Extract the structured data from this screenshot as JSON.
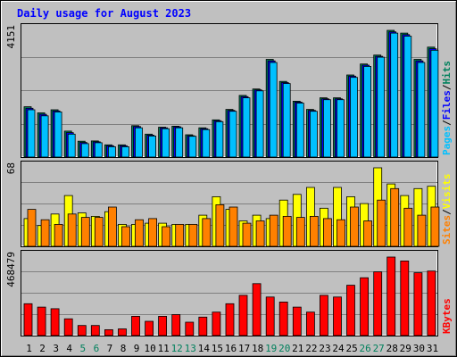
{
  "chart_data": {
    "type": "bar",
    "title": "Daily usage for August 2023",
    "categories": [
      "1",
      "2",
      "3",
      "4",
      "5",
      "6",
      "7",
      "8",
      "9",
      "10",
      "11",
      "12",
      "13",
      "14",
      "15",
      "16",
      "17",
      "18",
      "19",
      "20",
      "21",
      "22",
      "23",
      "24",
      "25",
      "26",
      "27",
      "28",
      "29",
      "30",
      "31"
    ],
    "weekend_days": [
      "5",
      "6",
      "12",
      "13",
      "19",
      "20",
      "26",
      "27"
    ],
    "panels": [
      {
        "id": "hits",
        "max_label": "4151",
        "ylim": [
          0,
          4151
        ],
        "right_labels": [
          "Hits",
          "Files",
          "Pages"
        ],
        "series": [
          {
            "name": "Hits",
            "color": "#00805c",
            "values": [
              1650,
              1450,
              1550,
              850,
              520,
              530,
              400,
              400,
              1030,
              750,
              980,
              1010,
              730,
              960,
              1220,
              1560,
              2020,
              2230,
              3200,
              2480,
              1830,
              1560,
              1940,
              1940,
              2690,
              3050,
              3340,
              4151,
              4060,
              3200,
              3600
            ]
          },
          {
            "name": "Files",
            "color": "#0000ff",
            "values": [
              1600,
              1400,
              1510,
              800,
              480,
              500,
              370,
              370,
              1000,
              720,
              960,
              990,
              700,
              930,
              1190,
              1530,
              1980,
              2200,
              3150,
              2440,
              1800,
              1530,
              1910,
              1910,
              2650,
              3010,
              3300,
              4100,
              4010,
              3150,
              3550
            ]
          },
          {
            "name": "Pages",
            "color": "#00c0ff",
            "values": [
              1550,
              1350,
              1480,
              750,
              440,
              470,
              340,
              340,
              960,
              690,
              930,
              960,
              680,
              900,
              1160,
              1500,
              1940,
              2170,
              3100,
              2410,
              1770,
              1500,
              1880,
              1880,
              2610,
              2970,
              3270,
              4060,
              3960,
              3100,
              3500
            ]
          }
        ]
      },
      {
        "id": "visits",
        "max_label": "68",
        "ylim": [
          0,
          68
        ],
        "right_labels": [
          "Visits",
          "Sites"
        ],
        "series": [
          {
            "name": "Visits",
            "color": "#ffff00",
            "values": [
              24,
              18,
              28,
              44,
              29,
              26,
              30,
              19,
              19,
              20,
              20,
              19,
              19,
              27,
              43,
              32,
              22,
              27,
              24,
              40,
              45,
              51,
              33,
              51,
              43,
              37,
              68,
              54,
              44,
              50,
              52
            ]
          },
          {
            "name": "Sites",
            "color": "#ff8000",
            "values": [
              32,
              23,
              19,
              28,
              25,
              25,
              34,
              17,
              23,
              24,
              17,
              19,
              19,
              24,
              36,
              34,
              20,
              22,
              27,
              26,
              25,
              26,
              24,
              23,
              34,
              22,
              40,
              50,
              33,
              27,
              34
            ]
          }
        ]
      },
      {
        "id": "kbytes",
        "max_label": "468479",
        "ylim": [
          0,
          468479
        ],
        "right_labels": [
          "KBytes"
        ],
        "series": [
          {
            "name": "KBytes",
            "color": "#ff0000",
            "values": [
              190000,
              170000,
              160000,
              100000,
              60000,
              60000,
              35000,
              40000,
              115000,
              85000,
              115000,
              125000,
              80000,
              110000,
              140000,
              190000,
              240000,
              310000,
              230000,
              200000,
              170000,
              140000,
              240000,
              230000,
              300000,
              345000,
              380000,
              468479,
              445000,
              375000,
              385000
            ]
          }
        ]
      }
    ]
  }
}
